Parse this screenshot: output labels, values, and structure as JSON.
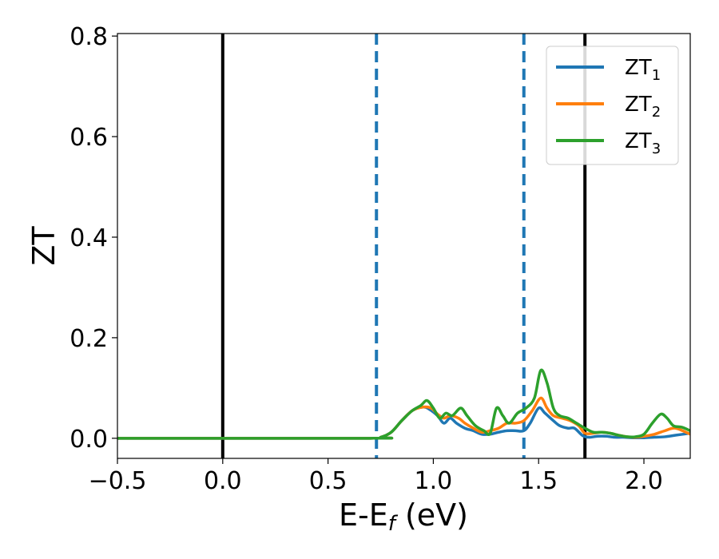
{
  "chart_data": {
    "type": "line",
    "title": "",
    "xlabel_main": "E-E",
    "xlabel_sub": "f",
    "xlabel_tail": " (eV)",
    "ylabel": "ZT",
    "xlim": [
      -0.5,
      2.22
    ],
    "ylim": [
      -0.04,
      0.805
    ],
    "x_ticks": [
      {
        "value": -0.5,
        "label": "−0.5"
      },
      {
        "value": 0.0,
        "label": "0.0"
      },
      {
        "value": 0.5,
        "label": "0.5"
      },
      {
        "value": 1.0,
        "label": "1.0"
      },
      {
        "value": 1.5,
        "label": "1.5"
      },
      {
        "value": 2.0,
        "label": "2.0"
      }
    ],
    "y_ticks": [
      {
        "value": 0.0,
        "label": "0.0"
      },
      {
        "value": 0.2,
        "label": "0.2"
      },
      {
        "value": 0.4,
        "label": "0.4"
      },
      {
        "value": 0.6,
        "label": "0.6"
      },
      {
        "value": 0.8,
        "label": "0.8"
      }
    ],
    "grid": false,
    "legend_position": "top-right",
    "vlines": [
      {
        "x": 0.0,
        "color": "#000000",
        "style": "solid"
      },
      {
        "x": 1.72,
        "color": "#000000",
        "style": "solid"
      },
      {
        "x": 0.73,
        "color": "#1f77b4",
        "style": "dashed"
      },
      {
        "x": 1.43,
        "color": "#1f77b4",
        "style": "dashed"
      }
    ],
    "series": [
      {
        "name_main": "ZT",
        "name_sub": "1",
        "color": "#1f77b4",
        "points": [
          [
            -0.5,
            0
          ],
          [
            0.7,
            0
          ],
          [
            0.75,
            0.002
          ],
          [
            0.8,
            0.012
          ],
          [
            0.85,
            0.035
          ],
          [
            0.9,
            0.055
          ],
          [
            0.95,
            0.062
          ],
          [
            0.98,
            0.058
          ],
          [
            1.02,
            0.045
          ],
          [
            1.05,
            0.03
          ],
          [
            1.08,
            0.04
          ],
          [
            1.11,
            0.03
          ],
          [
            1.15,
            0.02
          ],
          [
            1.19,
            0.015
          ],
          [
            1.23,
            0.008
          ],
          [
            1.27,
            0.008
          ],
          [
            1.31,
            0.012
          ],
          [
            1.35,
            0.015
          ],
          [
            1.39,
            0.015
          ],
          [
            1.43,
            0.015
          ],
          [
            1.46,
            0.03
          ],
          [
            1.5,
            0.06
          ],
          [
            1.53,
            0.05
          ],
          [
            1.57,
            0.035
          ],
          [
            1.6,
            0.025
          ],
          [
            1.64,
            0.02
          ],
          [
            1.67,
            0.02
          ],
          [
            1.71,
            0.005
          ],
          [
            1.74,
            0.002
          ],
          [
            1.78,
            0.004
          ],
          [
            1.82,
            0.004
          ],
          [
            1.86,
            0.002
          ],
          [
            1.9,
            0.002
          ],
          [
            1.95,
            0.001
          ],
          [
            2.0,
            0.001
          ],
          [
            2.05,
            0.002
          ],
          [
            2.1,
            0.003
          ],
          [
            2.15,
            0.006
          ],
          [
            2.22,
            0.01
          ]
        ]
      },
      {
        "name_main": "ZT",
        "name_sub": "2",
        "color": "#ff7f0e",
        "points": [
          [
            -0.5,
            0
          ],
          [
            0.7,
            0
          ],
          [
            0.75,
            0.002
          ],
          [
            0.8,
            0.012
          ],
          [
            0.85,
            0.035
          ],
          [
            0.9,
            0.055
          ],
          [
            0.95,
            0.062
          ],
          [
            0.99,
            0.06
          ],
          [
            1.02,
            0.048
          ],
          [
            1.05,
            0.04
          ],
          [
            1.08,
            0.045
          ],
          [
            1.12,
            0.04
          ],
          [
            1.15,
            0.03
          ],
          [
            1.19,
            0.02
          ],
          [
            1.23,
            0.012
          ],
          [
            1.27,
            0.015
          ],
          [
            1.31,
            0.02
          ],
          [
            1.35,
            0.03
          ],
          [
            1.39,
            0.03
          ],
          [
            1.43,
            0.035
          ],
          [
            1.47,
            0.055
          ],
          [
            1.51,
            0.08
          ],
          [
            1.54,
            0.06
          ],
          [
            1.57,
            0.045
          ],
          [
            1.61,
            0.04
          ],
          [
            1.65,
            0.035
          ],
          [
            1.69,
            0.025
          ],
          [
            1.72,
            0.01
          ],
          [
            1.76,
            0.01
          ],
          [
            1.8,
            0.012
          ],
          [
            1.84,
            0.01
          ],
          [
            1.88,
            0.006
          ],
          [
            1.92,
            0.003
          ],
          [
            1.96,
            0.002
          ],
          [
            2.0,
            0.004
          ],
          [
            2.05,
            0.008
          ],
          [
            2.1,
            0.015
          ],
          [
            2.15,
            0.02
          ],
          [
            2.22,
            0.008
          ]
        ]
      },
      {
        "name_main": "ZT",
        "name_sub": "3",
        "color": "#2ca02c",
        "points": [
          [
            -0.5,
            0
          ],
          [
            0.7,
            0
          ],
          [
            0.75,
            0.002
          ],
          [
            0.8,
            0.012
          ],
          [
            0.85,
            0.035
          ],
          [
            0.9,
            0.055
          ],
          [
            0.94,
            0.065
          ],
          [
            0.97,
            0.075
          ],
          [
            1.0,
            0.06
          ],
          [
            1.03,
            0.04
          ],
          [
            1.06,
            0.05
          ],
          [
            1.09,
            0.045
          ],
          [
            1.13,
            0.06
          ],
          [
            1.16,
            0.045
          ],
          [
            1.2,
            0.025
          ],
          [
            1.24,
            0.015
          ],
          [
            1.27,
            0.01
          ],
          [
            1.3,
            0.06
          ],
          [
            1.33,
            0.045
          ],
          [
            1.36,
            0.03
          ],
          [
            1.4,
            0.05
          ],
          [
            1.44,
            0.06
          ],
          [
            1.48,
            0.08
          ],
          [
            1.51,
            0.135
          ],
          [
            1.54,
            0.11
          ],
          [
            1.57,
            0.06
          ],
          [
            1.6,
            0.045
          ],
          [
            1.64,
            0.04
          ],
          [
            1.68,
            0.03
          ],
          [
            1.72,
            0.02
          ],
          [
            1.76,
            0.012
          ],
          [
            1.8,
            0.012
          ],
          [
            1.84,
            0.01
          ],
          [
            1.88,
            0.006
          ],
          [
            1.92,
            0.003
          ],
          [
            1.96,
            0.003
          ],
          [
            2.0,
            0.008
          ],
          [
            2.04,
            0.03
          ],
          [
            2.08,
            0.048
          ],
          [
            2.11,
            0.04
          ],
          [
            2.14,
            0.025
          ],
          [
            2.18,
            0.022
          ],
          [
            2.22,
            0.015
          ]
        ]
      }
    ]
  }
}
